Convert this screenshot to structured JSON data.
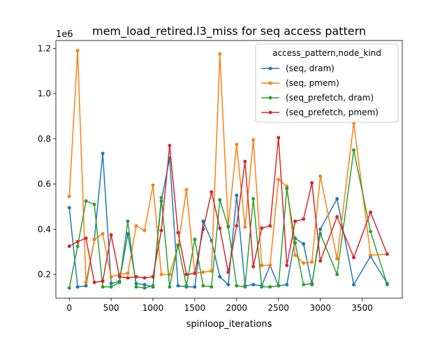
{
  "chart_data": {
    "type": "line",
    "title": "mem_load_retired.l3_miss for seq access pattern",
    "xlabel": "spinloop_iterations",
    "ylabel": "",
    "y_offset_label": "1e6",
    "xlim": [
      -160,
      3980
    ],
    "ylim": [
      0.095,
      1.235
    ],
    "x_ticks": [
      0,
      500,
      1000,
      1500,
      2000,
      2500,
      3000,
      3500
    ],
    "x_tick_labels": [
      "0",
      "500",
      "1000",
      "1500",
      "2000",
      "2500",
      "3000",
      "3500"
    ],
    "y_ticks": [
      0.2,
      0.4,
      0.6,
      0.8,
      1.0,
      1.2
    ],
    "y_tick_labels": [
      "0.2",
      "0.4",
      "0.6",
      "0.8",
      "1.0",
      "1.2"
    ],
    "grid": false,
    "legend": {
      "title": "access_pattern,node_kind",
      "placement": "upper right"
    },
    "series": [
      {
        "name": "(seq, dram)",
        "color": "#1f77b4",
        "x": [
          0,
          100,
          200,
          300,
          400,
          500,
          600,
          700,
          800,
          900,
          1000,
          1100,
          1200,
          1300,
          1400,
          1500,
          1600,
          1700,
          1800,
          1900,
          2000,
          2100,
          2200,
          2300,
          2400,
          2500,
          2600,
          2700,
          2800,
          2900,
          3000,
          3200,
          3400,
          3600,
          3800
        ],
        "y": [
          0.495,
          0.145,
          0.15,
          0.355,
          0.735,
          0.16,
          0.17,
          0.38,
          0.16,
          0.155,
          0.145,
          0.525,
          0.715,
          0.15,
          0.145,
          0.145,
          0.435,
          0.35,
          0.19,
          0.155,
          0.55,
          0.15,
          0.155,
          0.15,
          0.24,
          0.15,
          0.155,
          0.36,
          0.335,
          0.155,
          0.4,
          0.535,
          0.155,
          0.28,
          0.16
        ]
      },
      {
        "name": "(seq, pmem)",
        "color": "#ff7f0e",
        "x": [
          0,
          100,
          200,
          300,
          400,
          500,
          600,
          700,
          800,
          900,
          1000,
          1100,
          1200,
          1300,
          1400,
          1500,
          1600,
          1700,
          1800,
          1900,
          2000,
          2100,
          2200,
          2300,
          2400,
          2500,
          2600,
          2700,
          2800,
          2900,
          3000,
          3200,
          3400,
          3600,
          3800
        ],
        "y": [
          0.545,
          1.19,
          0.165,
          0.355,
          0.38,
          0.19,
          0.2,
          0.205,
          0.415,
          0.395,
          0.595,
          0.2,
          0.2,
          0.325,
          0.575,
          0.205,
          0.21,
          0.215,
          1.175,
          0.415,
          0.775,
          0.41,
          0.795,
          0.24,
          0.24,
          0.62,
          0.59,
          0.285,
          0.25,
          0.255,
          0.635,
          0.27,
          0.87,
          0.285,
          0.29
        ]
      },
      {
        "name": "(seq_prefetch, dram)",
        "color": "#2ca02c",
        "x": [
          0,
          100,
          200,
          300,
          400,
          500,
          600,
          700,
          800,
          900,
          1000,
          1100,
          1200,
          1300,
          1400,
          1500,
          1600,
          1700,
          1800,
          1900,
          2000,
          2100,
          2200,
          2300,
          2400,
          2500,
          2600,
          2700,
          2800,
          2900,
          3000,
          3200,
          3400,
          3600,
          3800
        ],
        "y": [
          0.14,
          0.325,
          0.525,
          0.51,
          0.145,
          0.145,
          0.165,
          0.435,
          0.145,
          0.14,
          0.15,
          0.54,
          0.145,
          0.33,
          0.15,
          0.355,
          0.15,
          0.145,
          0.53,
          0.41,
          0.15,
          0.145,
          0.535,
          0.145,
          0.145,
          0.15,
          0.58,
          0.34,
          0.155,
          0.16,
          0.38,
          0.2,
          0.75,
          0.39,
          0.155
        ]
      },
      {
        "name": "(seq_prefetch, pmem)",
        "color": "#d62728",
        "x": [
          0,
          100,
          200,
          300,
          400,
          500,
          600,
          700,
          800,
          900,
          1000,
          1100,
          1200,
          1300,
          1400,
          1500,
          1600,
          1700,
          1800,
          1900,
          2000,
          2100,
          2200,
          2300,
          2400,
          2500,
          2600,
          2700,
          2800,
          2900,
          3000,
          3200,
          3400,
          3600,
          3800
        ],
        "y": [
          0.325,
          0.345,
          0.36,
          0.165,
          0.17,
          0.375,
          0.19,
          0.185,
          0.19,
          0.185,
          0.19,
          0.395,
          0.77,
          0.385,
          0.2,
          0.205,
          0.4,
          0.565,
          0.405,
          0.21,
          0.415,
          0.7,
          0.235,
          0.405,
          0.415,
          0.805,
          0.24,
          0.435,
          0.445,
          0.605,
          0.26,
          0.455,
          0.275,
          0.475,
          0.29
        ]
      }
    ]
  }
}
